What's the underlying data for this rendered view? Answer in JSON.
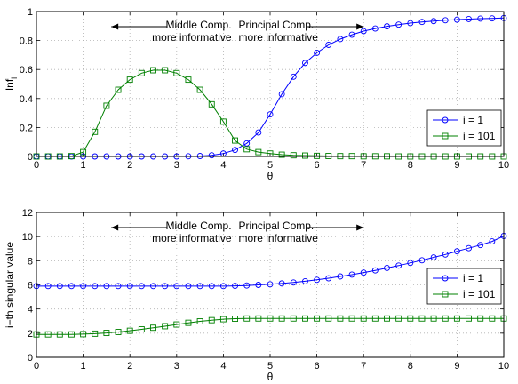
{
  "chart_data": [
    {
      "type": "line",
      "xlabel": "θ",
      "ylabel": "Inf",
      "ylabel_subscript": "i",
      "xlim": [
        0,
        10
      ],
      "ylim": [
        0,
        1
      ],
      "xticks": [
        "0",
        "1",
        "2",
        "3",
        "4",
        "5",
        "6",
        "7",
        "8",
        "9",
        "10"
      ],
      "yticks": [
        "0",
        "0.2",
        "0.4",
        "0.6",
        "0.8",
        "1"
      ],
      "grid": true,
      "legend_position": "lower-right",
      "threshold_x": 4.25,
      "annotations": {
        "left_line1": "Middle Comp.",
        "left_line2": "more informative",
        "right_line1": "Principal Comp.",
        "right_line2": "more informative"
      },
      "series": [
        {
          "name": "i = 1",
          "color": "#0000ff",
          "marker": "circle",
          "x": [
            0,
            0.25,
            0.5,
            0.75,
            1,
            1.25,
            1.5,
            1.75,
            2,
            2.25,
            2.5,
            2.75,
            3,
            3.25,
            3.5,
            3.75,
            4,
            4.25,
            4.5,
            4.75,
            5,
            5.25,
            5.5,
            5.75,
            6,
            6.25,
            6.5,
            6.75,
            7,
            7.25,
            7.5,
            7.75,
            8,
            8.25,
            8.5,
            8.75,
            9,
            9.25,
            9.5,
            9.75,
            10
          ],
          "y": [
            0,
            0,
            0,
            0,
            0,
            0,
            0,
            0,
            0,
            0,
            0,
            0,
            0,
            0.001,
            0.003,
            0.008,
            0.02,
            0.045,
            0.09,
            0.165,
            0.29,
            0.43,
            0.55,
            0.645,
            0.715,
            0.77,
            0.81,
            0.84,
            0.865,
            0.883,
            0.898,
            0.91,
            0.92,
            0.928,
            0.934,
            0.94,
            0.944,
            0.948,
            0.951,
            0.953,
            0.955
          ]
        },
        {
          "name": "i = 101",
          "color": "#008000",
          "marker": "square",
          "x": [
            0,
            0.25,
            0.5,
            0.75,
            1,
            1.25,
            1.5,
            1.75,
            2,
            2.25,
            2.5,
            2.75,
            3,
            3.25,
            3.5,
            3.75,
            4,
            4.25,
            4.5,
            4.75,
            5,
            5.25,
            5.5,
            5.75,
            6,
            6.25,
            6.5,
            6.75,
            7,
            7.25,
            7.5,
            7.75,
            8,
            8.25,
            8.5,
            8.75,
            9,
            9.25,
            9.5,
            9.75,
            10
          ],
          "y": [
            0,
            0,
            0,
            0.002,
            0.03,
            0.17,
            0.35,
            0.46,
            0.53,
            0.575,
            0.595,
            0.595,
            0.575,
            0.53,
            0.46,
            0.36,
            0.24,
            0.11,
            0.05,
            0.03,
            0.02,
            0.012,
            0.008,
            0.006,
            0.004,
            0.003,
            0.002,
            0.002,
            0.001,
            0.001,
            0.001,
            0,
            0,
            0,
            0,
            0,
            0,
            0,
            0,
            0,
            0
          ]
        }
      ]
    },
    {
      "type": "line",
      "xlabel": "θ",
      "ylabel": "i−th singular value",
      "xlim": [
        0,
        10
      ],
      "ylim": [
        0,
        12
      ],
      "xticks": [
        "0",
        "1",
        "2",
        "3",
        "4",
        "5",
        "6",
        "7",
        "8",
        "9",
        "10"
      ],
      "yticks": [
        "0",
        "2",
        "4",
        "6",
        "8",
        "10",
        "12"
      ],
      "grid": true,
      "legend_position": "lower-right",
      "threshold_x": 4.25,
      "annotations": {
        "left_line1": "Middle Comp.",
        "left_line2": "more informative",
        "right_line1": "Principal Comp.",
        "right_line2": "more informative"
      },
      "series": [
        {
          "name": "i = 1",
          "color": "#0000ff",
          "marker": "circle",
          "x": [
            0,
            0.25,
            0.5,
            0.75,
            1,
            1.25,
            1.5,
            1.75,
            2,
            2.25,
            2.5,
            2.75,
            3,
            3.25,
            3.5,
            3.75,
            4,
            4.25,
            4.5,
            4.75,
            5,
            5.25,
            5.5,
            5.75,
            6,
            6.25,
            6.5,
            6.75,
            7,
            7.25,
            7.5,
            7.75,
            8,
            8.25,
            8.5,
            8.75,
            9,
            9.25,
            9.5,
            9.75,
            10
          ],
          "y": [
            5.9,
            5.9,
            5.9,
            5.9,
            5.9,
            5.9,
            5.9,
            5.9,
            5.9,
            5.9,
            5.9,
            5.9,
            5.9,
            5.9,
            5.9,
            5.9,
            5.9,
            5.92,
            5.95,
            6.0,
            6.05,
            6.12,
            6.2,
            6.3,
            6.42,
            6.55,
            6.7,
            6.85,
            7.02,
            7.2,
            7.4,
            7.6,
            7.82,
            8.04,
            8.28,
            8.52,
            8.78,
            9.04,
            9.3,
            9.6,
            10.05
          ]
        },
        {
          "name": "i = 101",
          "color": "#008000",
          "marker": "square",
          "x": [
            0,
            0.25,
            0.5,
            0.75,
            1,
            1.25,
            1.5,
            1.75,
            2,
            2.25,
            2.5,
            2.75,
            3,
            3.25,
            3.5,
            3.75,
            4,
            4.25,
            4.5,
            4.75,
            5,
            5.25,
            5.5,
            5.75,
            6,
            6.25,
            6.5,
            6.75,
            7,
            7.25,
            7.5,
            7.75,
            8,
            8.25,
            8.5,
            8.75,
            9,
            9.25,
            9.5,
            9.75,
            10
          ],
          "y": [
            1.9,
            1.9,
            1.9,
            1.9,
            1.92,
            1.96,
            2.02,
            2.1,
            2.2,
            2.32,
            2.45,
            2.58,
            2.72,
            2.86,
            2.98,
            3.08,
            3.16,
            3.2,
            3.22,
            3.22,
            3.22,
            3.22,
            3.22,
            3.22,
            3.22,
            3.22,
            3.22,
            3.22,
            3.22,
            3.22,
            3.22,
            3.22,
            3.22,
            3.22,
            3.22,
            3.22,
            3.22,
            3.22,
            3.22,
            3.22,
            3.22
          ]
        }
      ]
    }
  ]
}
